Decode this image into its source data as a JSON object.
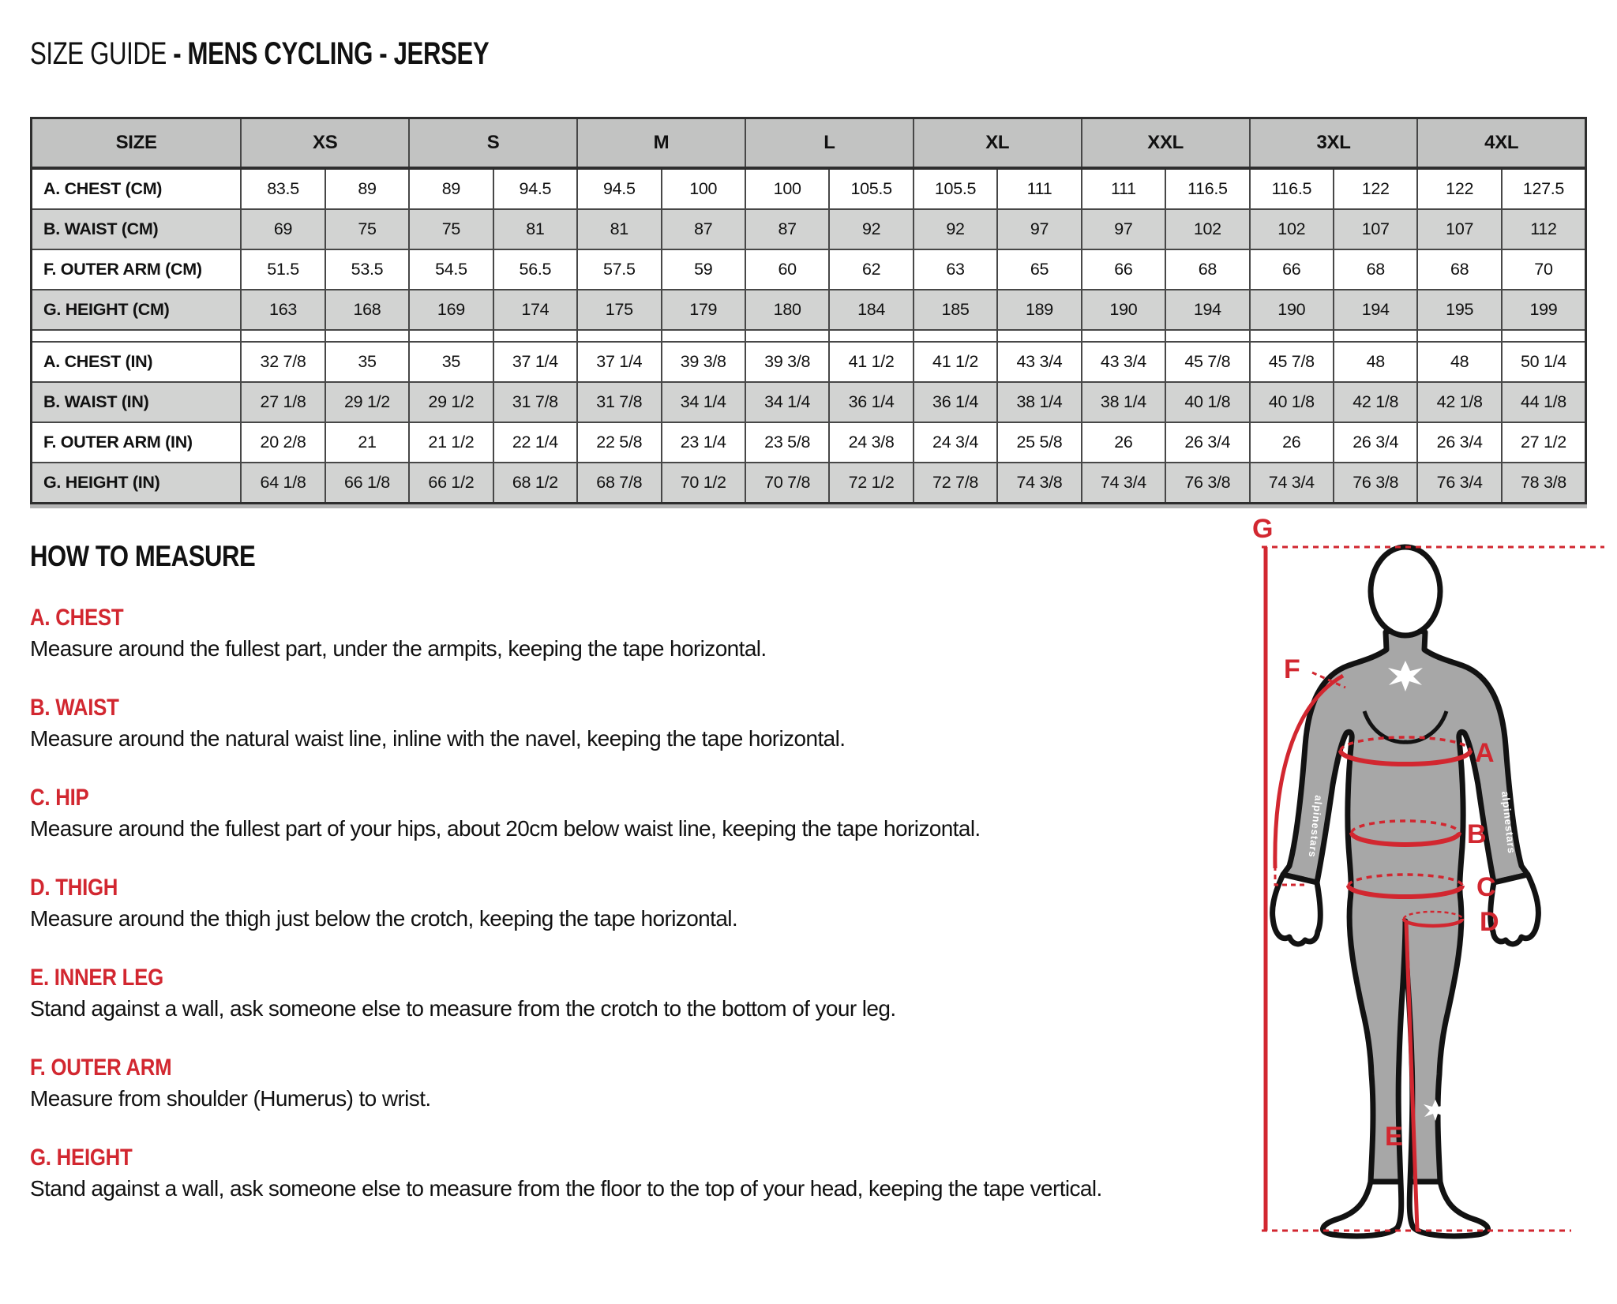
{
  "title": {
    "prefix": "SIZE GUIDE ",
    "suffix": "- MENS CYCLING - JERSEY"
  },
  "table": {
    "corner_label": "SIZE",
    "sizes": [
      "XS",
      "S",
      "M",
      "L",
      "XL",
      "XXL",
      "3XL",
      "4XL"
    ],
    "row_groups": [
      {
        "unit": "cm",
        "rows": [
          {
            "label": "A. CHEST (CM)",
            "values": [
              "83.5",
              "89",
              "89",
              "94.5",
              "94.5",
              "100",
              "100",
              "105.5",
              "105.5",
              "111",
              "111",
              "116.5",
              "116.5",
              "122",
              "122",
              "127.5"
            ]
          },
          {
            "label": "B. WAIST (CM)",
            "values": [
              "69",
              "75",
              "75",
              "81",
              "81",
              "87",
              "87",
              "92",
              "92",
              "97",
              "97",
              "102",
              "102",
              "107",
              "107",
              "112"
            ]
          },
          {
            "label": "F. OUTER ARM (CM)",
            "values": [
              "51.5",
              "53.5",
              "54.5",
              "56.5",
              "57.5",
              "59",
              "60",
              "62",
              "63",
              "65",
              "66",
              "68",
              "66",
              "68",
              "68",
              "70"
            ]
          },
          {
            "label": "G. HEIGHT (CM)",
            "values": [
              "163",
              "168",
              "169",
              "174",
              "175",
              "179",
              "180",
              "184",
              "185",
              "189",
              "190",
              "194",
              "190",
              "194",
              "195",
              "199"
            ]
          }
        ]
      },
      {
        "unit": "in",
        "rows": [
          {
            "label": "A. CHEST (IN)",
            "values": [
              "32 7/8",
              "35",
              "35",
              "37 1/4",
              "37 1/4",
              "39 3/8",
              "39 3/8",
              "41 1/2",
              "41 1/2",
              "43 3/4",
              "43 3/4",
              "45 7/8",
              "45 7/8",
              "48",
              "48",
              "50 1/4"
            ]
          },
          {
            "label": "B. WAIST (IN)",
            "values": [
              "27 1/8",
              "29 1/2",
              "29 1/2",
              "31 7/8",
              "31 7/8",
              "34 1/4",
              "34 1/4",
              "36 1/4",
              "36 1/4",
              "38 1/4",
              "38 1/4",
              "40 1/8",
              "40 1/8",
              "42 1/8",
              "42 1/8",
              "44 1/8"
            ]
          },
          {
            "label": "F. OUTER ARM (IN)",
            "values": [
              "20 2/8",
              "21",
              "21 1/2",
              "22 1/4",
              "22 5/8",
              "23 1/4",
              "23 5/8",
              "24 3/8",
              "24 3/4",
              "25 5/8",
              "26",
              "26 3/4",
              "26",
              "26 3/4",
              "26 3/4",
              "27 1/2"
            ]
          },
          {
            "label": "G. HEIGHT (IN)",
            "values": [
              "64 1/8",
              "66 1/8",
              "66 1/2",
              "68 1/2",
              "68 7/8",
              "70 1/2",
              "70 7/8",
              "72 1/2",
              "72 7/8",
              "74 3/8",
              "74 3/4",
              "76 3/8",
              "74 3/4",
              "76 3/8",
              "76 3/4",
              "78 3/8"
            ]
          }
        ]
      }
    ]
  },
  "how_to_measure": {
    "heading": "HOW TO MEASURE",
    "sections": [
      {
        "label": "A. CHEST",
        "text": "Measure around the fullest part, under the armpits, keeping the tape horizontal."
      },
      {
        "label": "B. WAIST",
        "text": "Measure around the natural waist line, inline with the navel, keeping the tape horizontal."
      },
      {
        "label": "C. HIP",
        "text": "Measure around the fullest part of your hips, about 20cm below waist line, keeping the tape horizontal."
      },
      {
        "label": "D. THIGH",
        "text": "Measure around the thigh just below the crotch, keeping the tape horizontal."
      },
      {
        "label": "E. INNER LEG",
        "text": "Stand against a wall, ask someone else to measure from the crotch to the bottom of your leg."
      },
      {
        "label": "F. OUTER ARM",
        "text": "Measure from shoulder (Humerus) to wrist."
      },
      {
        "label": "G. HEIGHT",
        "text": "Stand against a wall, ask someone else to measure from the floor to the top of your head, keeping the tape vertical."
      }
    ]
  },
  "diagram": {
    "label_g": "G",
    "label_f": "F",
    "label_a": "A",
    "label_b": "B",
    "label_c": "C",
    "label_d": "D",
    "label_e": "E",
    "brand_text": "alpinestars"
  },
  "colors": {
    "accent_red": "#d22730",
    "table_header_gray": "#c2c3c2",
    "table_row_gray": "#d2d3d2",
    "figure_gray": "#a7a7a7"
  }
}
